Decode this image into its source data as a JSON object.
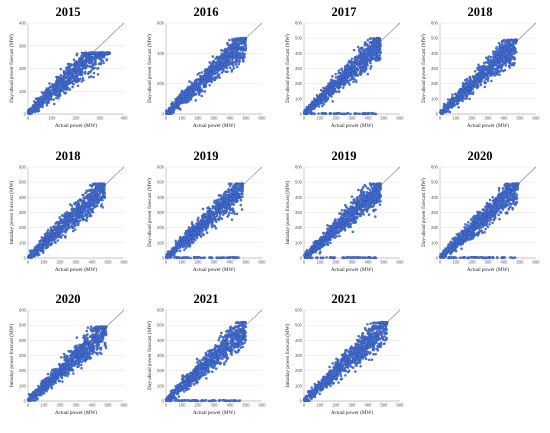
{
  "chart_data": [
    {
      "type": "scatter",
      "title": "2015",
      "xlabel": "Actual power (MW)",
      "ylabel": "Day-ahead power forecast (MW)",
      "xlim": [
        0,
        400
      ],
      "ylim": [
        0,
        400
      ],
      "xticks": [
        "0",
        "100",
        "200",
        "300",
        "400"
      ],
      "yticks": [
        "0",
        "100",
        "200",
        "300",
        "400"
      ],
      "cap": 270,
      "xmax": 340,
      "zeros": false
    },
    {
      "type": "scatter",
      "title": "2016",
      "xlabel": "Actual power (MW)",
      "ylabel": "Day-ahead power forecast (MW)",
      "xlim": [
        0,
        600
      ],
      "ylim": [
        0,
        600
      ],
      "xticks": [
        "0",
        "100",
        "200",
        "300",
        "400",
        "500",
        "600"
      ],
      "yticks": [
        "0",
        "200",
        "400",
        "600"
      ],
      "cap": 500,
      "xmax": 500,
      "zeros": false
    },
    {
      "type": "scatter",
      "title": "2017",
      "xlabel": "Actual power (MW)",
      "ylabel": "Day-ahead power forecast (MW)",
      "xlim": [
        0,
        600
      ],
      "ylim": [
        0,
        600
      ],
      "xticks": [
        "0",
        "100",
        "200",
        "300",
        "400",
        "500",
        "600"
      ],
      "yticks": [
        "0",
        "100",
        "200",
        "300",
        "400",
        "500",
        "600"
      ],
      "cap": 500,
      "xmax": 480,
      "zeros": true
    },
    {
      "type": "scatter",
      "title": "2018",
      "xlabel": "Actual power (MW)",
      "ylabel": "Day-ahead power forecast (MW)",
      "xlim": [
        0,
        600
      ],
      "ylim": [
        0,
        600
      ],
      "xticks": [
        "0",
        "100",
        "200",
        "300",
        "400",
        "500",
        "600"
      ],
      "yticks": [
        "0",
        "100",
        "200",
        "300",
        "400",
        "500",
        "600"
      ],
      "cap": 490,
      "xmax": 480,
      "zeros": false
    },
    {
      "type": "scatter",
      "title": "2018",
      "xlabel": "Actual power (MW)",
      "ylabel": "Intraday power forecast (MW)",
      "xlim": [
        0,
        600
      ],
      "ylim": [
        0,
        600
      ],
      "xticks": [
        "0",
        "100",
        "200",
        "300",
        "400",
        "500",
        "600"
      ],
      "yticks": [
        "0",
        "100",
        "200",
        "300",
        "400",
        "500",
        "600"
      ],
      "cap": 490,
      "xmax": 480,
      "zeros": false
    },
    {
      "type": "scatter",
      "title": "2019",
      "xlabel": "Actual power (MW)",
      "ylabel": "Day-ahead power forecast (MW)",
      "xlim": [
        0,
        600
      ],
      "ylim": [
        0,
        600
      ],
      "xticks": [
        "0",
        "100",
        "200",
        "300",
        "400",
        "500",
        "600"
      ],
      "yticks": [
        "0",
        "100",
        "200",
        "300",
        "400",
        "500",
        "600"
      ],
      "cap": 490,
      "xmax": 480,
      "zeros": true
    },
    {
      "type": "scatter",
      "title": "2019",
      "xlabel": "Actual power (MW)",
      "ylabel": "Intraday power forecast (MW)",
      "xlim": [
        0,
        600
      ],
      "ylim": [
        0,
        600
      ],
      "xticks": [
        "0",
        "100",
        "200",
        "300",
        "400",
        "500",
        "600"
      ],
      "yticks": [
        "0",
        "100",
        "200",
        "300",
        "400",
        "500",
        "600"
      ],
      "cap": 490,
      "xmax": 480,
      "zeros": true
    },
    {
      "type": "scatter",
      "title": "2020",
      "xlabel": "Actual power (MW)",
      "ylabel": "Day-ahead power forecast (MW)",
      "xlim": [
        0,
        600
      ],
      "ylim": [
        0,
        600
      ],
      "xticks": [
        "0",
        "100",
        "200",
        "300",
        "400",
        "500",
        "600"
      ],
      "yticks": [
        "0",
        "100",
        "200",
        "300",
        "400",
        "500",
        "600"
      ],
      "cap": 490,
      "xmax": 490,
      "zeros": true
    },
    {
      "type": "scatter",
      "title": "2020",
      "xlabel": "Actual power (MW)",
      "ylabel": "Intraday power forecast (MW)",
      "xlim": [
        0,
        600
      ],
      "ylim": [
        0,
        600
      ],
      "xticks": [
        "0",
        "100",
        "200",
        "300",
        "400",
        "500",
        "600"
      ],
      "yticks": [
        "0",
        "100",
        "200",
        "300",
        "400",
        "500",
        "600"
      ],
      "cap": 490,
      "xmax": 490,
      "zeros": false
    },
    {
      "type": "scatter",
      "title": "2021",
      "xlabel": "Actual power (MW)",
      "ylabel": "Day-ahead power forecast (MW)",
      "xlim": [
        0,
        600
      ],
      "ylim": [
        0,
        600
      ],
      "xticks": [
        "0",
        "100",
        "200",
        "300",
        "400",
        "500",
        "600"
      ],
      "yticks": [
        "0",
        "100",
        "200",
        "300",
        "400",
        "500",
        "600"
      ],
      "cap": 520,
      "xmax": 500,
      "zeros": true
    },
    {
      "type": "scatter",
      "title": "2021",
      "xlabel": "Actual power (MW)",
      "ylabel": "Intraday power forecast (MW)",
      "xlim": [
        0,
        600
      ],
      "ylim": [
        0,
        600
      ],
      "xticks": [
        "0",
        "100",
        "200",
        "300",
        "400",
        "500",
        "600"
      ],
      "yticks": [
        "0",
        "100",
        "200",
        "300",
        "400",
        "500",
        "600"
      ],
      "cap": 520,
      "xmax": 520,
      "zeros": false
    }
  ],
  "colors": {
    "point_fill": "#4a74d4",
    "point_stroke": "#1d3f9a",
    "diagonal": "#7d7d7d",
    "grid": "#dcdcdc",
    "axis": "#9a9a9a"
  }
}
